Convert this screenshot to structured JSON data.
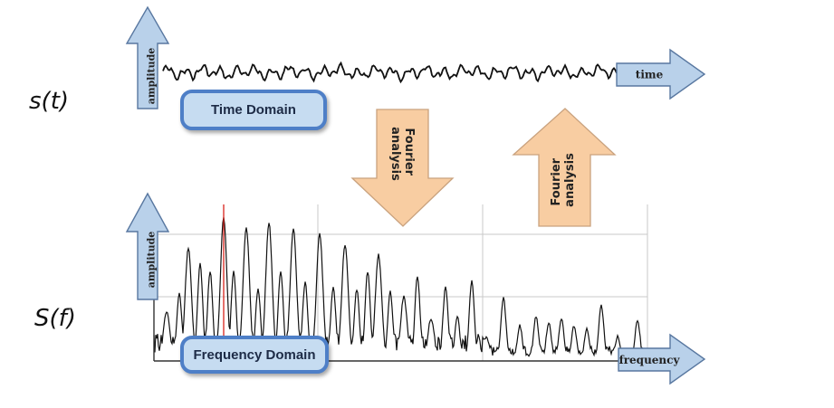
{
  "labels": {
    "time_signal": "s(t)",
    "freq_signal": "S(f)"
  },
  "time_panel": {
    "amplitude_label": "amplitude",
    "axis_label": "time",
    "domain_label": "Time Domain"
  },
  "freq_panel": {
    "amplitude_label": "amplitude",
    "axis_label": "frequency",
    "domain_label": "Frequency Domain"
  },
  "transforms": {
    "down_arrow_label": [
      "Fourier",
      "analysis"
    ],
    "up_arrow_label": [
      "Fourier",
      "analysis"
    ]
  },
  "colors": {
    "axis_arrow_fill": "#b9d1ea",
    "axis_arrow_stroke": "#5877a0",
    "transform_arrow_fill": "#f8cda2",
    "transform_arrow_stroke": "#c9a27e",
    "domain_box_fill": "#c6dcf1",
    "domain_box_border": "#4e7fc7",
    "marker_line": "#d9221c",
    "grid": "#c8c8c8",
    "signal": "#111111"
  }
}
